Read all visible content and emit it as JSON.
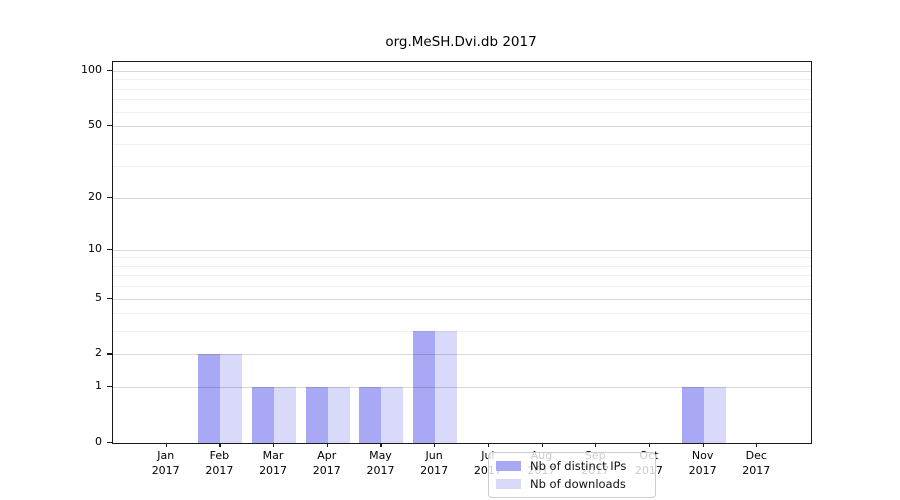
{
  "chart_data": {
    "type": "bar",
    "title": "org.MeSH.Dvi.db 2017",
    "year": "2017",
    "categories": [
      "Jan",
      "Feb",
      "Mar",
      "Apr",
      "May",
      "Jun",
      "Jul",
      "Aug",
      "Sep",
      "Oct",
      "Nov",
      "Dec"
    ],
    "series": [
      {
        "name": "Nb of distinct IPs",
        "color": "#a8a8f4",
        "values": [
          0,
          2,
          1,
          1,
          1,
          3,
          0,
          0,
          0,
          0,
          1,
          0
        ]
      },
      {
        "name": "Nb of downloads",
        "color": "#d9d9f9",
        "values": [
          0,
          2,
          1,
          1,
          1,
          3,
          0,
          0,
          0,
          0,
          1,
          0
        ]
      }
    ],
    "xlabel": "",
    "ylabel": "",
    "yticks": [
      0,
      1,
      2,
      5,
      10,
      20,
      50,
      100
    ],
    "minor_gridlines": [
      3,
      4,
      6,
      7,
      8,
      9,
      30,
      40,
      60,
      70,
      80,
      90
    ],
    "ylim": [
      0,
      112
    ],
    "yscale": "log1p",
    "grid": true,
    "legend_position": "inside-lower-center",
    "colors": {
      "axis": "#1a1a1a",
      "major_grid": "#d9d9d9",
      "minor_grid": "#f1f1f1",
      "background": "#ffffff"
    }
  }
}
